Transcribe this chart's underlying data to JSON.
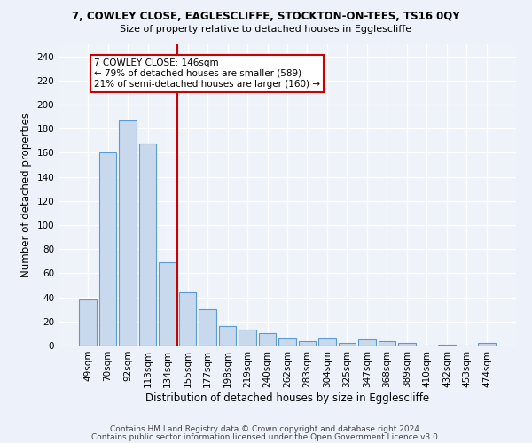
{
  "title1": "7, COWLEY CLOSE, EAGLESCLIFFE, STOCKTON-ON-TEES, TS16 0QY",
  "title2": "Size of property relative to detached houses in Egglescliffe",
  "xlabel": "Distribution of detached houses by size in Egglescliffe",
  "ylabel": "Number of detached properties",
  "categories": [
    "49sqm",
    "70sqm",
    "92sqm",
    "113sqm",
    "134sqm",
    "155sqm",
    "177sqm",
    "198sqm",
    "219sqm",
    "240sqm",
    "262sqm",
    "283sqm",
    "304sqm",
    "325sqm",
    "347sqm",
    "368sqm",
    "389sqm",
    "410sqm",
    "432sqm",
    "453sqm",
    "474sqm"
  ],
  "values": [
    38,
    160,
    187,
    168,
    69,
    44,
    30,
    16,
    13,
    10,
    6,
    4,
    6,
    2,
    5,
    4,
    2,
    0,
    1,
    0,
    2
  ],
  "bar_color": "#c9d9ed",
  "bar_edge_color": "#5b9bd5",
  "red_line_index": 4.5,
  "annotation_text": "7 COWLEY CLOSE: 146sqm\n← 79% of detached houses are smaller (589)\n21% of semi-detached houses are larger (160) →",
  "annotation_box_color": "#ffffff",
  "annotation_box_edge_color": "#cc0000",
  "footer_text1": "Contains HM Land Registry data © Crown copyright and database right 2024.",
  "footer_text2": "Contains public sector information licensed under the Open Government Licence v3.0.",
  "ylim": [
    0,
    250
  ],
  "yticks": [
    0,
    20,
    40,
    60,
    80,
    100,
    120,
    140,
    160,
    180,
    200,
    220,
    240
  ],
  "fig_bg_color": "#edf2fa",
  "background_color": "#eef2f9",
  "grid_color": "#ffffff",
  "title1_fontsize": 8.5,
  "title2_fontsize": 8.0,
  "axis_label_fontsize": 8.5,
  "tick_fontsize": 7.5,
  "annotation_fontsize": 7.5,
  "footer_fontsize": 6.5
}
